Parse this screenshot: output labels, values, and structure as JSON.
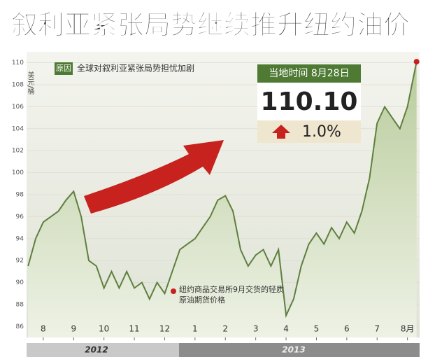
{
  "chart_data": {
    "type": "area",
    "title": "叙利亚紧张局势继续推升纽约油价",
    "y_label": "美元/桶",
    "legend_tag": "原因",
    "legend_text": "全球对叙利亚紧张局势担忧加剧",
    "info_date": "当地时间 8月28日",
    "info_price": "110.10",
    "info_change": "1.0%",
    "note": "纽约商品交易所9月交货的轻质原油期货价格",
    "years": [
      "2012",
      "2013"
    ],
    "color": "#5f7f3e",
    "x": [
      -0.5,
      -0.25,
      0,
      0.25,
      0.5,
      0.75,
      1,
      1.25,
      1.5,
      1.75,
      2,
      2.25,
      2.5,
      2.75,
      3,
      3.25,
      3.5,
      3.75,
      4,
      4.25,
      4.5,
      4.75,
      5,
      5.25,
      5.5,
      5.75,
      6,
      6.25,
      6.5,
      6.75,
      7,
      7.25,
      7.5,
      7.75,
      8,
      8.25,
      8.5,
      8.75,
      9,
      9.25,
      9.5,
      9.75,
      10,
      10.25,
      10.5,
      10.75,
      11,
      11.25,
      11.5,
      11.75,
      12,
      12.3
    ],
    "values": [
      91.5,
      94,
      95.5,
      96,
      96.5,
      97.5,
      98.3,
      96,
      92,
      91.5,
      89.5,
      91,
      89.5,
      91,
      89.5,
      90,
      88.5,
      90,
      89,
      91,
      93,
      93.5,
      94,
      95,
      96,
      97.5,
      97.9,
      96.5,
      93,
      91.5,
      92.5,
      93,
      91.5,
      93,
      87,
      88.5,
      91.5,
      93.5,
      94.5,
      93.5,
      95,
      94,
      95.5,
      94.5,
      96.5,
      99.5,
      104.5,
      106,
      105,
      104,
      106,
      110.1
    ],
    "xlim": [
      -0.55,
      12.4
    ],
    "xticks": [
      {
        "value": 0,
        "label": "8"
      },
      {
        "value": 1,
        "label": "9"
      },
      {
        "value": 2,
        "label": "10"
      },
      {
        "value": 3,
        "label": "11"
      },
      {
        "value": 4,
        "label": "12"
      },
      {
        "value": 5,
        "label": "1"
      },
      {
        "value": 6,
        "label": "2"
      },
      {
        "value": 7,
        "label": "3"
      },
      {
        "value": 8,
        "label": "4"
      },
      {
        "value": 9,
        "label": "5"
      },
      {
        "value": 10,
        "label": "6"
      },
      {
        "value": 11,
        "label": "7"
      },
      {
        "value": 12,
        "label": "8月"
      }
    ],
    "ylim": [
      85,
      111
    ],
    "yticks": [
      86,
      88,
      90,
      92,
      94,
      96,
      98,
      100,
      102,
      104,
      106,
      108,
      110
    ]
  }
}
